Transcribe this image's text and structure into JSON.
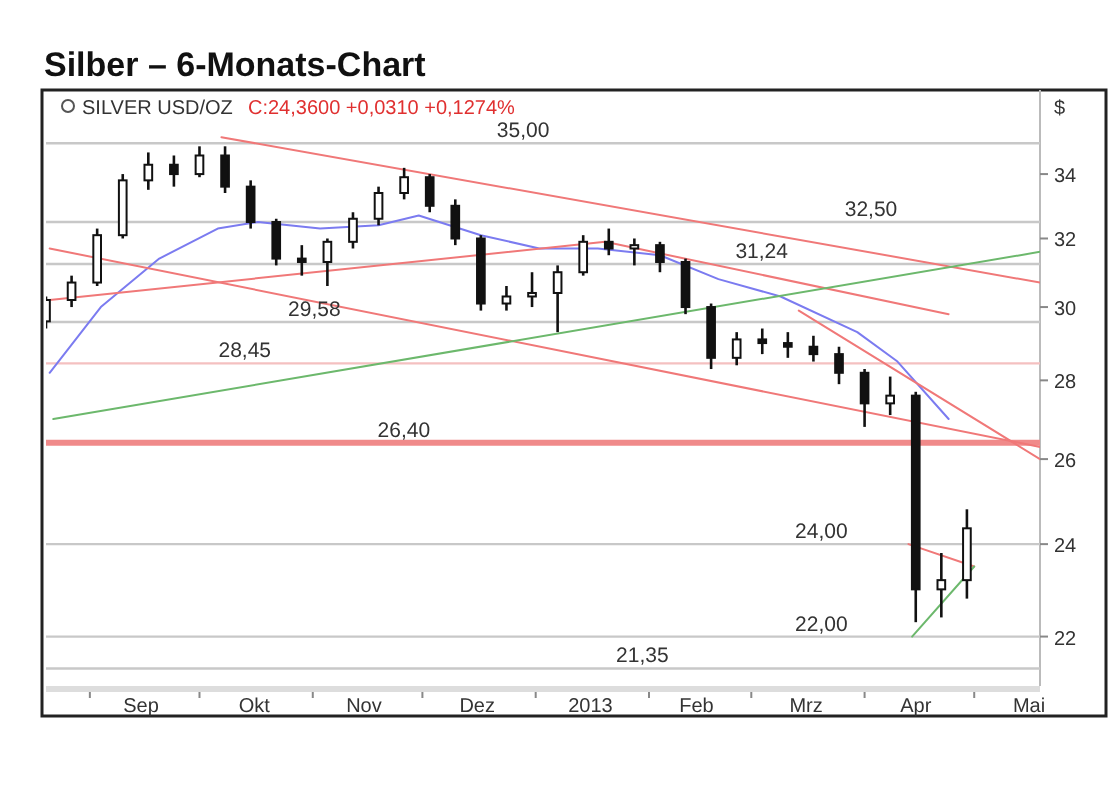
{
  "chart_data": {
    "type": "candlestick",
    "title": "Silber – 6-Monats-Chart",
    "subtitle": "SILVER USD/OZ",
    "annotations": [
      "C:24,3600 +0,0310 +0,1274%"
    ],
    "ylabel": "$",
    "log": true,
    "x": [
      "2012-08-20",
      "2012-08-27",
      "2012-09-03",
      "2012-09-10",
      "2012-09-17",
      "2012-09-24",
      "2012-10-01",
      "2012-10-08",
      "2012-10-15",
      "2012-10-22",
      "2012-10-29",
      "2012-11-05",
      "2012-11-12",
      "2012-11-19",
      "2012-11-26",
      "2012-12-03",
      "2012-12-10",
      "2012-12-17",
      "2012-12-24",
      "2012-12-31",
      "2013-01-07",
      "2013-01-14",
      "2013-01-21",
      "2013-01-28",
      "2013-02-04",
      "2013-02-11",
      "2013-02-18",
      "2013-02-25",
      "2013-03-04",
      "2013-03-11",
      "2013-03-18",
      "2013-03-25",
      "2013-04-01",
      "2013-04-08",
      "2013-04-15",
      "2013-04-22",
      "2013-04-29"
    ],
    "ohlc": [
      [
        29.6,
        30.3,
        29.4,
        30.2
      ],
      [
        30.2,
        30.9,
        30.0,
        30.7
      ],
      [
        30.7,
        32.3,
        30.6,
        32.1
      ],
      [
        32.1,
        34.0,
        32.0,
        33.8
      ],
      [
        33.8,
        34.7,
        33.5,
        34.3
      ],
      [
        34.3,
        34.6,
        33.6,
        34.0
      ],
      [
        34.0,
        34.9,
        33.9,
        34.6
      ],
      [
        34.6,
        34.9,
        33.4,
        33.6
      ],
      [
        33.6,
        33.8,
        32.3,
        32.5
      ],
      [
        32.5,
        32.6,
        31.2,
        31.4
      ],
      [
        31.4,
        31.8,
        30.9,
        31.3
      ],
      [
        31.3,
        32.0,
        30.6,
        31.9
      ],
      [
        31.9,
        32.8,
        31.7,
        32.6
      ],
      [
        32.6,
        33.6,
        32.4,
        33.4
      ],
      [
        33.4,
        34.2,
        33.2,
        33.9
      ],
      [
        33.9,
        34.0,
        32.8,
        33.0
      ],
      [
        33.0,
        33.2,
        31.8,
        32.0
      ],
      [
        32.0,
        32.1,
        29.9,
        30.1
      ],
      [
        30.1,
        30.6,
        29.9,
        30.3
      ],
      [
        30.3,
        31.0,
        30.0,
        30.4
      ],
      [
        30.4,
        31.2,
        29.3,
        31.0
      ],
      [
        31.0,
        32.1,
        30.9,
        31.9
      ],
      [
        31.9,
        32.3,
        31.5,
        31.7
      ],
      [
        31.7,
        32.0,
        31.2,
        31.8
      ],
      [
        31.8,
        31.9,
        31.0,
        31.3
      ],
      [
        31.3,
        31.4,
        29.8,
        30.0
      ],
      [
        30.0,
        30.1,
        28.3,
        28.6
      ],
      [
        28.6,
        29.3,
        28.4,
        29.1
      ],
      [
        29.1,
        29.4,
        28.7,
        29.0
      ],
      [
        29.0,
        29.3,
        28.6,
        28.9
      ],
      [
        28.9,
        29.2,
        28.5,
        28.7
      ],
      [
        28.7,
        28.9,
        27.9,
        28.2
      ],
      [
        28.2,
        28.3,
        26.8,
        27.4
      ],
      [
        27.4,
        28.1,
        27.1,
        27.6
      ],
      [
        27.6,
        27.7,
        22.3,
        23.0
      ],
      [
        23.0,
        23.8,
        22.4,
        23.2
      ],
      [
        23.2,
        24.8,
        22.8,
        24.36
      ]
    ],
    "color": "#111111",
    "series": [
      {
        "type": "line",
        "color": "#7b7bf0",
        "x": [
          "2012-08-21",
          "2012-09-04",
          "2012-09-20",
          "2012-10-06",
          "2012-10-17",
          "2012-11-03",
          "2012-11-19",
          "2012-11-30",
          "2012-12-17",
          "2013-01-02",
          "2013-01-18",
          "2013-02-04",
          "2013-02-20",
          "2013-03-09",
          "2013-03-30",
          "2013-04-10",
          "2013-04-24"
        ],
        "values": [
          28.2,
          30.0,
          31.4,
          32.3,
          32.5,
          32.3,
          32.4,
          32.7,
          32.1,
          31.7,
          31.7,
          31.5,
          30.8,
          30.3,
          29.3,
          28.5,
          27.0
        ]
      },
      {
        "type": "line",
        "color": "#f07878",
        "x": [
          "2012-10-07",
          "2013-05-19"
        ],
        "values": [
          35.2,
          30.7
        ]
      },
      {
        "type": "line",
        "color": "#f07878",
        "x": [
          "2012-08-21",
          "2013-05-19"
        ],
        "values": [
          31.7,
          26.3
        ]
      },
      {
        "type": "line",
        "color": "#f07878",
        "x": [
          "2012-08-21",
          "2013-01-20",
          "2013-04-24"
        ],
        "values": [
          30.2,
          31.9,
          29.8
        ]
      },
      {
        "type": "line",
        "color": "#f07878",
        "x": [
          "2013-03-14",
          "2013-05-19"
        ],
        "values": [
          29.9,
          26.0
        ]
      },
      {
        "type": "line",
        "color": "#6cb86c",
        "x": [
          "2012-08-22",
          "2013-05-19"
        ],
        "values": [
          27.0,
          31.6
        ]
      },
      {
        "type": "line",
        "color": "#f07878",
        "x": [
          "2013-04-13",
          "2013-05-01"
        ],
        "values": [
          24.0,
          23.5
        ]
      },
      {
        "type": "line",
        "color": "#6cb86c",
        "x": [
          "2013-04-14",
          "2013-05-01"
        ],
        "values": [
          22.0,
          23.5
        ]
      }
    ],
    "ref_lines": [
      {
        "axis": "y",
        "value": 35.0,
        "label": "35,00",
        "color": "#c8c8c8"
      },
      {
        "axis": "y",
        "value": 32.5,
        "label": "32,50",
        "color": "#c8c8c8"
      },
      {
        "axis": "y",
        "value": 31.24,
        "label": "31,24",
        "color": "#c8c8c8"
      },
      {
        "axis": "y",
        "value": 29.58,
        "label": "29,58",
        "color": "#c8c8c8"
      },
      {
        "axis": "y",
        "value": 28.45,
        "label": "28,45",
        "color": "#f4c0c0"
      },
      {
        "axis": "y",
        "value": 26.4,
        "label": "26,40",
        "color": "#f08a8a"
      },
      {
        "axis": "y",
        "value": 24.0,
        "label": "24,00",
        "color": "#c8c8c8"
      },
      {
        "axis": "y",
        "value": 22.0,
        "label": "22,00",
        "color": "#c8c8c8"
      },
      {
        "axis": "y",
        "value": 21.35,
        "label": "21,35",
        "color": "#c8c8c8"
      }
    ],
    "xlim": [
      "2012-08-20",
      "2013-05-19"
    ],
    "xticks": [
      {
        "value": "2012-09-01",
        "label": null
      },
      {
        "value": "2012-09-15",
        "label": "Sep"
      },
      {
        "value": "2012-10-01",
        "label": null
      },
      {
        "value": "2012-10-16",
        "label": "Okt"
      },
      {
        "value": "2012-11-01",
        "label": null
      },
      {
        "value": "2012-11-15",
        "label": "Nov"
      },
      {
        "value": "2012-12-01",
        "label": null
      },
      {
        "value": "2012-12-16",
        "label": "Dez"
      },
      {
        "value": "2013-01-01",
        "label": null
      },
      {
        "value": "2013-01-16",
        "label": "2013"
      },
      {
        "value": "2013-02-01",
        "label": null
      },
      {
        "value": "2013-02-14",
        "label": "Feb"
      },
      {
        "value": "2013-03-01",
        "label": null
      },
      {
        "value": "2013-03-16",
        "label": "Mrz"
      },
      {
        "value": "2013-04-01",
        "label": null
      },
      {
        "value": "2013-04-15",
        "label": "Apr"
      },
      {
        "value": "2013-05-01",
        "label": null
      },
      {
        "value": "2013-05-16",
        "label": "Mai"
      }
    ],
    "ylim": [
      21.0,
      36.8
    ],
    "yticks": [
      22,
      24,
      26,
      28,
      30,
      32,
      34
    ],
    "grid": false
  }
}
